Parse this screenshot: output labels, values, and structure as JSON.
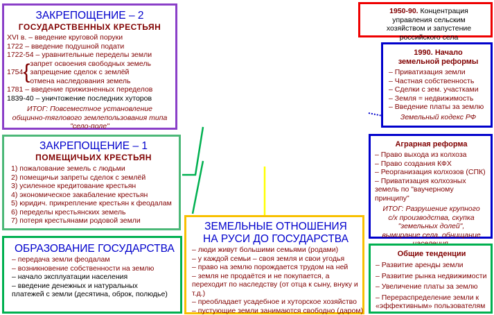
{
  "zakr2": {
    "title": "ЗАКРЕПОЩЕНИЕ – 2",
    "subtitle": "ГОСУДАРСТВЕННЫХ КРЕСТЬЯН",
    "items_before": [
      "XVI в. – введение круговой поруки",
      "1722 – введение подушной подати",
      "1722-54 – уравнительные переделы земли"
    ],
    "year1754": "1754",
    "items1754": [
      "запрет освоения свободных земель",
      "запрещение сделок с землёй",
      "отмена наследования земель"
    ],
    "items_after": [
      "1781 – введение прижизненных переделов",
      "1839-40 – уничтожение последних хуторов"
    ],
    "result": "ИТОГ: Повсеместное установление общинно-тяглового землепользования типа \"село-поле\""
  },
  "zakr1": {
    "title": "ЗАКРЕПОЩЕНИЕ – 1",
    "subtitle": "ПОМЕЩИЧЬИХ КРЕСТЬЯН",
    "items": [
      "1) пожалование земель с людьми",
      "2) помещичьи запреты сделок с землёй",
      "3) усиленное кредитование крестьян",
      "4) экономическое закабаление крестьян",
      "5) юридич. прикрепление крестьян к феодалам",
      "6) переделы крестьянских земель",
      "7) потеря крестьянами родовой земли"
    ]
  },
  "state": {
    "title": "ОБРАЗОВАНИЕ ГОСУДАРСТВА",
    "items": [
      "– передача земли феодалам",
      "– возникновение собственности на землю",
      "– начало эксплуатации населения",
      "– введение денежных и натуральных платежей с земли (десятина, оброк, полюдье)"
    ]
  },
  "rus": {
    "title": "ЗЕМЕЛЬНЫЕ ОТНОШЕНИЯ НА РУСИ ДО ГОСУДАРСТВА",
    "items": [
      "– люди живут большими семьями (родами)",
      "– у каждой семьи – своя земля и свои угодья",
      "– право на землю порождается трудом на ней",
      "– земля не продаётся и не покупается, а переходит по наследству (от отца к сыну, внуку и т.д.)",
      "– преобладает усадебное и хуторское хозяйство",
      "– пустующие земли занимаются свободно (даром)"
    ]
  },
  "y1950": {
    "year": "1950-90.",
    "text": "Концентрация управления сельским хозяйством и запустение российского села"
  },
  "y1990": {
    "title": "1990. Начало земельной реформы",
    "items": [
      "– Приватизация земли",
      "– Частная собственность",
      "– Сделки с зем. участками",
      "– Земля = недвижимость",
      "– Введение платы за землю"
    ],
    "code": "Земельный кодекс РФ"
  },
  "agrar": {
    "title": "Аграрная реформа",
    "items": [
      "– Право выхода из колхоза",
      "– Право создания КФХ",
      "– Реорганизация колхозов (СПК)",
      "– Приватизация колхозных земель по \"ваучерному принципу\""
    ],
    "result": "ИТОГ: Разрушение крупного с/х производства, скупка \"земельных долей\", вымирание села, обнищание населения."
  },
  "trends": {
    "title": "Общие тенденции",
    "items": [
      "– Развитие аренды земли",
      "– Развитие рынка недвижимости",
      "– Увеличение платы за землю",
      "– Перераспределение земли к «эффективным» пользователям"
    ]
  },
  "colors": {
    "purple": "#8a3fc8",
    "green1": "#4cb878",
    "green2": "#00b050",
    "yellow": "#f8c000",
    "red": "#ee0000",
    "blue": "#0000cc",
    "text": "#800000"
  }
}
